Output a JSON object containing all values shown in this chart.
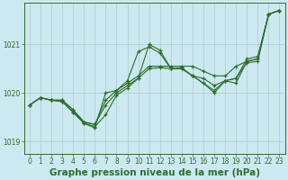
{
  "background_color": "#cce8f0",
  "grid_color": "#aacccc",
  "line_color": "#2d6e2d",
  "title": "Graphe pression niveau de la mer (hPa)",
  "ylim": [
    1018.75,
    1021.85
  ],
  "xlim": [
    -0.5,
    23.5
  ],
  "yticks": [
    1019,
    1020,
    1021
  ],
  "xticks": [
    0,
    1,
    2,
    3,
    4,
    5,
    6,
    7,
    8,
    9,
    10,
    11,
    12,
    13,
    14,
    15,
    16,
    17,
    18,
    19,
    20,
    21,
    22,
    23
  ],
  "series_x": [
    0,
    1,
    2,
    3,
    4,
    5,
    6,
    7,
    8,
    9,
    10,
    11,
    12,
    13,
    14,
    15,
    16,
    17,
    18,
    19,
    20,
    21,
    22,
    23
  ],
  "line1_y": [
    1019.75,
    1019.9,
    1019.85,
    1019.82,
    1019.6,
    1019.38,
    1019.3,
    1019.55,
    1019.95,
    1020.1,
    1020.3,
    1020.5,
    1020.52,
    1020.5,
    1020.5,
    1020.35,
    1020.2,
    1020.05,
    1020.25,
    1020.3,
    1020.62,
    1020.65,
    1021.62,
    1021.7
  ],
  "line2_y": [
    1019.75,
    1019.9,
    1019.85,
    1019.85,
    1019.65,
    1019.4,
    1019.35,
    1019.75,
    1020.0,
    1020.15,
    1020.3,
    1021.0,
    1020.88,
    1020.5,
    1020.5,
    1020.35,
    1020.2,
    1020.0,
    1020.25,
    1020.2,
    1020.65,
    1020.7,
    1021.62,
    1021.7
  ],
  "line3_y": [
    1019.75,
    1019.9,
    1019.85,
    1019.82,
    1019.6,
    1019.37,
    1019.28,
    1020.0,
    1020.05,
    1020.25,
    1020.85,
    1020.95,
    1020.82,
    1020.5,
    1020.52,
    1020.35,
    1020.3,
    1020.15,
    1020.25,
    1020.3,
    1020.7,
    1020.75,
    1021.62,
    1021.7
  ],
  "line4_y": [
    1019.75,
    1019.9,
    1019.85,
    1019.85,
    1019.65,
    1019.4,
    1019.35,
    1019.85,
    1020.05,
    1020.2,
    1020.35,
    1020.55,
    1020.55,
    1020.55,
    1020.55,
    1020.55,
    1020.45,
    1020.35,
    1020.35,
    1020.55,
    1020.65,
    1020.7,
    1021.62,
    1021.7
  ],
  "marker": "+",
  "markersize": 3.5,
  "markeredgewidth": 0.9,
  "linewidth": 0.8,
  "title_fontsize": 7.5,
  "tick_fontsize": 5.5
}
